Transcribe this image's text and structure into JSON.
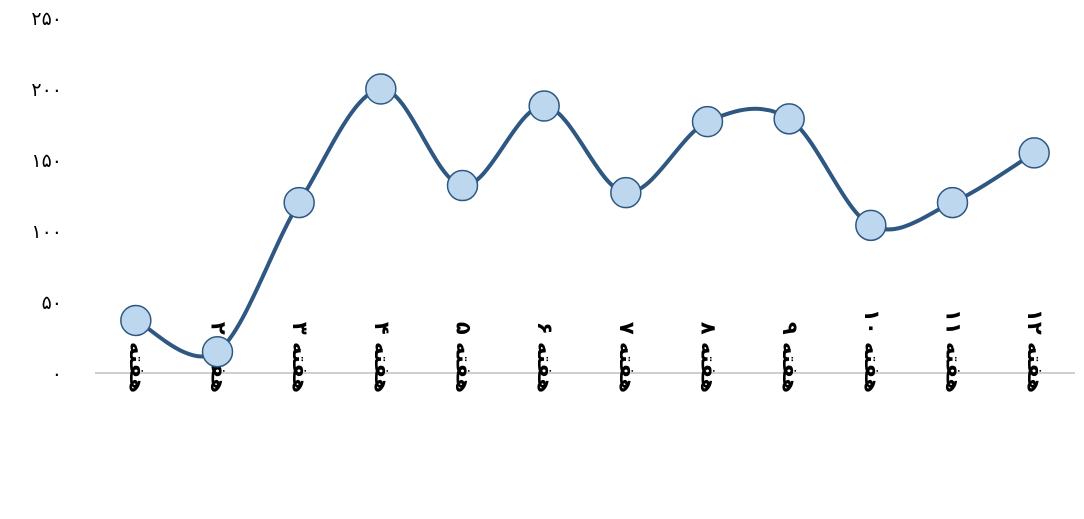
{
  "chart_data": {
    "type": "line",
    "categories": [
      "هفته ۱",
      "هفته ۲",
      "هفته ۳",
      "هفته ۴",
      "هفته ۵",
      "هفته ۶",
      "هفته ۷",
      "هفته ۸",
      "هفته ۹",
      "هفته ۱۰",
      "هفته ۱۱",
      "هفته ۱۲"
    ],
    "values": [
      37,
      15,
      120,
      200,
      132,
      188,
      127,
      177,
      179,
      104,
      120,
      155
    ],
    "y_ticks": [
      "۰",
      "۵۰",
      "۱۰۰",
      "۱۵۰",
      "۲۰۰",
      "۲۵۰"
    ],
    "ylim": [
      0,
      250
    ],
    "smooth": true,
    "grid": false,
    "legend": "none",
    "title": "",
    "xlabel": "",
    "ylabel": "",
    "colors": {
      "line": "#2E5781",
      "marker_fill": "#BDD7EE",
      "marker_stroke": "#2E5781",
      "axis": "#BFBFBF",
      "text": "#000000"
    }
  }
}
